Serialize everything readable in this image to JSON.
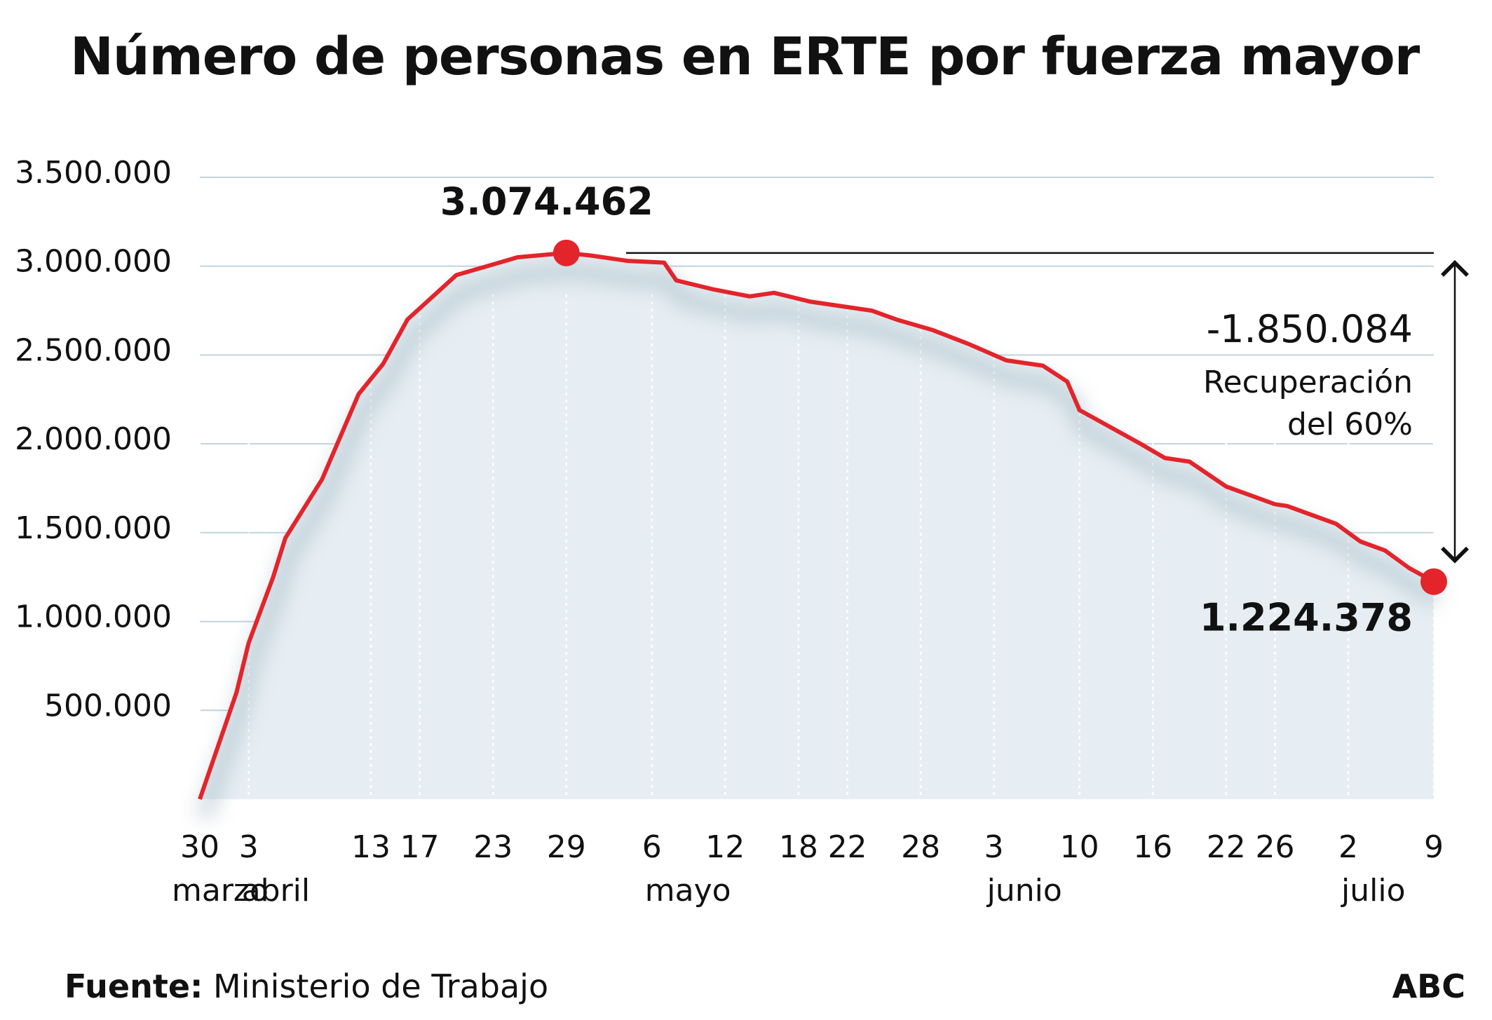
{
  "title": "Número de personas en ERTE por fuerza mayor",
  "footer": {
    "source_label": "Fuente:",
    "source_value": "Ministerio de Trabajo",
    "brand": "ABC"
  },
  "colors": {
    "line": "#e3242b",
    "area": "#e6eef3",
    "grid": "#c2d4df",
    "axis_text": "#111111"
  },
  "chart_data": {
    "type": "area",
    "title": "Número de personas en ERTE por fuerza mayor",
    "ylim": [
      0,
      3500000
    ],
    "yticks": [
      500000,
      1000000,
      1500000,
      2000000,
      2500000,
      3000000,
      3500000
    ],
    "ytick_labels": [
      "500.000",
      "1.000.000",
      "1.500.000",
      "2.000.000",
      "2.500.000",
      "3.000.000",
      "3.500.000"
    ],
    "xlim": [
      "2020-03-30",
      "2020-07-09"
    ],
    "xticks": [
      {
        "date": "2020-03-30",
        "day": "30",
        "month": "marzo"
      },
      {
        "date": "2020-04-03",
        "day": "3",
        "month": "abril"
      },
      {
        "date": "2020-04-13",
        "day": "13",
        "month": ""
      },
      {
        "date": "2020-04-17",
        "day": "17",
        "month": ""
      },
      {
        "date": "2020-04-23",
        "day": "23",
        "month": ""
      },
      {
        "date": "2020-04-29",
        "day": "29",
        "month": ""
      },
      {
        "date": "2020-05-06",
        "day": "6",
        "month": "mayo"
      },
      {
        "date": "2020-05-12",
        "day": "12",
        "month": ""
      },
      {
        "date": "2020-05-18",
        "day": "18",
        "month": ""
      },
      {
        "date": "2020-05-22",
        "day": "22",
        "month": ""
      },
      {
        "date": "2020-05-28",
        "day": "28",
        "month": ""
      },
      {
        "date": "2020-06-03",
        "day": "3",
        "month": "junio"
      },
      {
        "date": "2020-06-10",
        "day": "10",
        "month": ""
      },
      {
        "date": "2020-06-16",
        "day": "16",
        "month": ""
      },
      {
        "date": "2020-06-22",
        "day": "22",
        "month": ""
      },
      {
        "date": "2020-06-26",
        "day": "26",
        "month": ""
      },
      {
        "date": "2020-07-02",
        "day": "2",
        "month": "julio"
      },
      {
        "date": "2020-07-09",
        "day": "9",
        "month": ""
      }
    ],
    "series": [
      {
        "points": [
          [
            "2020-03-30",
            0
          ],
          [
            "2020-03-31",
            200000
          ],
          [
            "2020-04-01",
            400000
          ],
          [
            "2020-04-02",
            600000
          ],
          [
            "2020-04-03",
            880000
          ],
          [
            "2020-04-05",
            1250000
          ],
          [
            "2020-04-06",
            1470000
          ],
          [
            "2020-04-09",
            1800000
          ],
          [
            "2020-04-12",
            2280000
          ],
          [
            "2020-04-14",
            2450000
          ],
          [
            "2020-04-16",
            2700000
          ],
          [
            "2020-04-20",
            2950000
          ],
          [
            "2020-04-23",
            3010000
          ],
          [
            "2020-04-25",
            3050000
          ],
          [
            "2020-04-29",
            3074462
          ],
          [
            "2020-05-01",
            3060000
          ],
          [
            "2020-05-04",
            3030000
          ],
          [
            "2020-05-07",
            3020000
          ],
          [
            "2020-05-08",
            2920000
          ],
          [
            "2020-05-11",
            2870000
          ],
          [
            "2020-05-14",
            2830000
          ],
          [
            "2020-05-16",
            2850000
          ],
          [
            "2020-05-19",
            2800000
          ],
          [
            "2020-05-24",
            2750000
          ],
          [
            "2020-05-26",
            2700000
          ],
          [
            "2020-05-29",
            2640000
          ],
          [
            "2020-06-01",
            2560000
          ],
          [
            "2020-06-04",
            2470000
          ],
          [
            "2020-06-07",
            2440000
          ],
          [
            "2020-06-09",
            2350000
          ],
          [
            "2020-06-10",
            2190000
          ],
          [
            "2020-06-15",
            2000000
          ],
          [
            "2020-06-17",
            1920000
          ],
          [
            "2020-06-19",
            1900000
          ],
          [
            "2020-06-22",
            1760000
          ],
          [
            "2020-06-24",
            1710000
          ],
          [
            "2020-06-26",
            1660000
          ],
          [
            "2020-06-27",
            1650000
          ],
          [
            "2020-06-29",
            1600000
          ],
          [
            "2020-07-01",
            1550000
          ],
          [
            "2020-07-03",
            1450000
          ],
          [
            "2020-07-05",
            1400000
          ],
          [
            "2020-07-07",
            1300000
          ],
          [
            "2020-07-09",
            1224378
          ]
        ]
      }
    ],
    "annotations": {
      "peak": {
        "date": "2020-04-29",
        "value": 3074462,
        "label": "3.074.462"
      },
      "last": {
        "date": "2020-07-09",
        "value": 1224378,
        "label": "1.224.378"
      },
      "difference": {
        "label": "-1.850.084",
        "note_line1": "Recuperación",
        "note_line2": "del 60%"
      }
    },
    "grid": true
  }
}
